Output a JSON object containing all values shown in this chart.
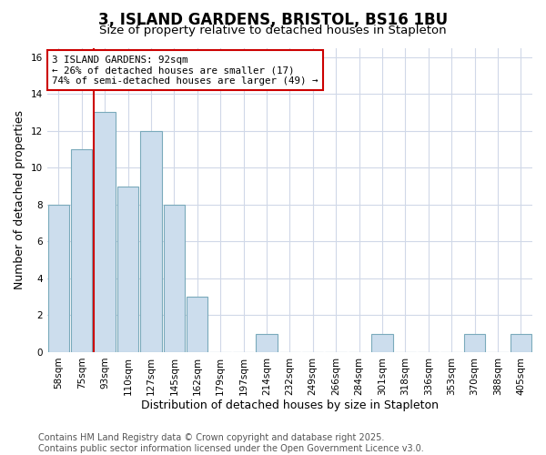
{
  "title": "3, ISLAND GARDENS, BRISTOL, BS16 1BU",
  "subtitle": "Size of property relative to detached houses in Stapleton",
  "xlabel": "Distribution of detached houses by size in Stapleton",
  "ylabel": "Number of detached properties",
  "categories": [
    "58sqm",
    "75sqm",
    "93sqm",
    "110sqm",
    "127sqm",
    "145sqm",
    "162sqm",
    "179sqm",
    "197sqm",
    "214sqm",
    "232sqm",
    "249sqm",
    "266sqm",
    "284sqm",
    "301sqm",
    "318sqm",
    "336sqm",
    "353sqm",
    "370sqm",
    "388sqm",
    "405sqm"
  ],
  "values": [
    8,
    11,
    13,
    9,
    12,
    8,
    3,
    0,
    0,
    1,
    0,
    0,
    0,
    0,
    1,
    0,
    0,
    0,
    1,
    0,
    1
  ],
  "bar_color": "#ccdded",
  "bar_edge_color": "#7aaabb",
  "property_line_idx": 2,
  "property_label": "3 ISLAND GARDENS: 92sqm",
  "annotation_line2": "← 26% of detached houses are smaller (17)",
  "annotation_line3": "74% of semi-detached houses are larger (49) →",
  "annotation_box_color": "#cc0000",
  "ylim": [
    0,
    16.5
  ],
  "yticks": [
    0,
    2,
    4,
    6,
    8,
    10,
    12,
    14,
    16
  ],
  "footer_line1": "Contains HM Land Registry data © Crown copyright and database right 2025.",
  "footer_line2": "Contains public sector information licensed under the Open Government Licence v3.0.",
  "bg_color": "#ffffff",
  "plot_bg_color": "#ffffff",
  "grid_color": "#d0d8e8",
  "title_fontsize": 12,
  "subtitle_fontsize": 9.5,
  "axis_label_fontsize": 9,
  "tick_fontsize": 7.5,
  "footer_fontsize": 7
}
